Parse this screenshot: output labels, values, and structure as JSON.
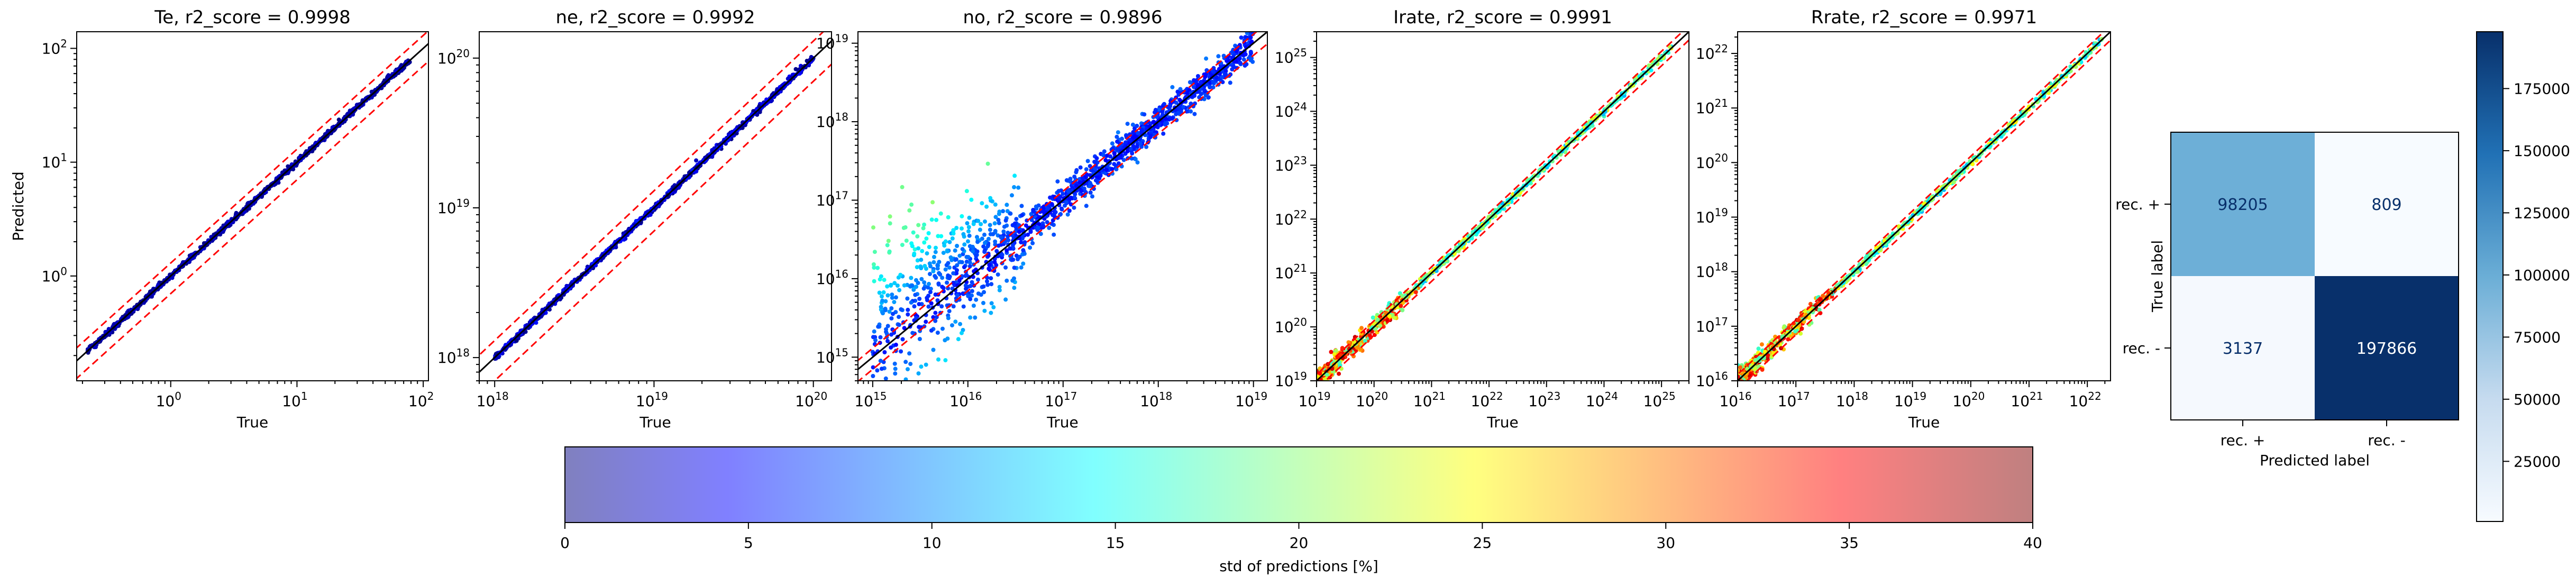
{
  "figure": {
    "panels": [
      {
        "title": "Te, r2_score = 0.9998",
        "xlabel": "True",
        "ylabel": "Predicted",
        "xticks": [
          "10^0",
          "10^1",
          "10^2"
        ],
        "yticks": [
          "10^0",
          "10^1",
          "10^2"
        ]
      },
      {
        "title": "ne, r2_score = 0.9992",
        "xlabel": "True",
        "ylabel": "",
        "xticks": [
          "10^18",
          "10^19",
          "10^20"
        ],
        "yticks": [
          "10^18",
          "10^19",
          "10^20"
        ]
      },
      {
        "title": "no, r2_score = 0.9896",
        "xlabel": "True",
        "ylabel": "",
        "xticks": [
          "10^15",
          "10^16",
          "10^17",
          "10^18",
          "10^19"
        ],
        "yticks": [
          "10^15",
          "10^16",
          "10^17",
          "10^18",
          "10^19"
        ]
      },
      {
        "title": "Irate, r2_score = 0.9991",
        "xlabel": "True",
        "ylabel": "",
        "xticks": [
          "10^19",
          "10^20",
          "10^21",
          "10^22",
          "10^23",
          "10^24",
          "10^25"
        ],
        "yticks": [
          "10^19",
          "10^20",
          "10^21",
          "10^22",
          "10^23",
          "10^24",
          "10^25"
        ]
      },
      {
        "title": "Rrate, r2_score = 0.9971",
        "xlabel": "True",
        "ylabel": "",
        "xticks": [
          "10^16",
          "10^17",
          "10^18",
          "10^19",
          "10^20",
          "10^21",
          "10^22"
        ],
        "yticks": [
          "10^16",
          "10^17",
          "10^18",
          "10^19",
          "10^20",
          "10^21",
          "10^22"
        ]
      }
    ],
    "confusion": {
      "xlabel": "Predicted label",
      "ylabel": "True label",
      "row_labels": [
        "rec. +",
        "rec. -"
      ],
      "col_labels": [
        "rec. +",
        "rec. -"
      ],
      "cells": [
        [
          "98205",
          "809"
        ],
        [
          "3137",
          "197866"
        ]
      ]
    },
    "cm_colorbar_ticks": [
      "25000",
      "50000",
      "75000",
      "100000",
      "125000",
      "150000",
      "175000"
    ],
    "std_colorbar": {
      "label": "std of predictions [%]",
      "ticks": [
        "0",
        "5",
        "10",
        "15",
        "20",
        "25",
        "30",
        "35",
        "40"
      ]
    }
  },
  "chart_data": [
    {
      "type": "scatter",
      "title": "Te, r2_score = 0.9998",
      "xlabel": "True",
      "ylabel": "Predicted",
      "xscale": "log",
      "yscale": "log",
      "xlim": [
        0.18,
        110
      ],
      "ylim": [
        0.12,
        140
      ],
      "series": [
        {
          "name": "",
          "x_range": [
            0.22,
            80
          ],
          "y_range": [
            0.22,
            80
          ]
        }
      ],
      "reference_lines": [
        "y = x",
        "y = 1.3x",
        "y = 0.7x"
      ]
    },
    {
      "type": "scatter",
      "title": "ne, r2_score = 0.9992",
      "xlabel": "True",
      "xscale": "log",
      "yscale": "log",
      "xlim": [
        8e+17,
        1.3e+20
      ],
      "ylim": [
        7e+17,
        1.5e+20
      ],
      "series": [
        {
          "name": "",
          "x_range": [
            1e+18,
            1e+20
          ],
          "y_range": [
            1e+18,
            1e+20
          ]
        }
      ],
      "reference_lines": [
        "y = x",
        "y = 1.3x",
        "y = 0.7x"
      ]
    },
    {
      "type": "scatter",
      "title": "no, r2_score = 0.9896",
      "xlabel": "True",
      "xscale": "log",
      "yscale": "log",
      "xlim": [
        700000000000000.0,
        1.4e+19
      ],
      "ylim": [
        500000000000000.0,
        1.4e+19
      ],
      "series": [
        {
          "name": "",
          "x_range": [
            1000000000000000.0,
            1e+19
          ],
          "y_range": [
            900000000000000.0,
            1e+19
          ]
        }
      ],
      "reference_lines": [
        "y = x",
        "y = 1.3x",
        "y = 0.7x"
      ]
    },
    {
      "type": "scatter",
      "title": "Irate, r2_score = 0.9991",
      "xlabel": "True",
      "xscale": "log",
      "yscale": "log",
      "xlim": [
        1e+19,
        3e+25
      ],
      "ylim": [
        1e+19,
        3e+25
      ],
      "series": [
        {
          "name": "",
          "x_range": [
            1e+19,
            1.5e+25
          ],
          "y_range": [
            1e+19,
            1.5e+25
          ]
        }
      ],
      "reference_lines": [
        "y = x",
        "y = 1.3x",
        "y = 0.7x"
      ]
    },
    {
      "type": "scatter",
      "title": "Rrate, r2_score = 0.9971",
      "xlabel": "True",
      "xscale": "log",
      "yscale": "log",
      "xlim": [
        1e+16,
        2.5e+22
      ],
      "ylim": [
        1e+16,
        2.5e+22
      ],
      "series": [
        {
          "name": "",
          "x_range": [
            1e+16,
            2e+22
          ],
          "y_range": [
            1e+16,
            2e+22
          ]
        }
      ],
      "reference_lines": [
        "y = x",
        "y = 1.3x",
        "y = 0.7x"
      ]
    },
    {
      "type": "heatmap",
      "xlabel": "Predicted label",
      "ylabel": "True label",
      "x": [
        "rec. +",
        "rec. -"
      ],
      "y": [
        "rec. +",
        "rec. -"
      ],
      "values": [
        [
          98205,
          809
        ],
        [
          3137,
          197866
        ]
      ],
      "colormap": "Blues",
      "colorbar_range": [
        809,
        197866
      ]
    }
  ],
  "colors": {
    "line_ref": "#000000",
    "line_band": "#ff0000",
    "cm_low": "#f7fbff",
    "cm_high": "#08306b"
  }
}
